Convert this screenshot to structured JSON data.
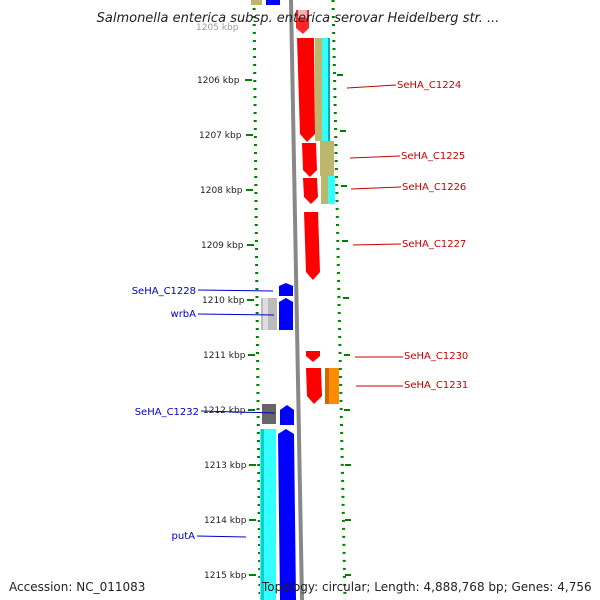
{
  "title": "Salmonella enterica subsp. enterica serovar Heidelberg str. ...",
  "ruler": {
    "ticks": [
      "1206 kbp",
      "1207 kbp",
      "1208 kbp",
      "1209 kbp",
      "1210 kbp",
      "1211 kbp",
      "1212 kbp",
      "1213 kbp",
      "1214 kbp",
      "1215 kbp"
    ],
    "clipped_top_label": "1205 kbp"
  },
  "features": {
    "forward": [
      "SeHA_C1224",
      "SeHA_C1225",
      "SeHA_C1226",
      "SeHA_C1227",
      "SeHA_C1230",
      "SeHA_C1231"
    ],
    "reverse": [
      "SeHA_C1228",
      "wrbA",
      "SeHA_C1232",
      "putA"
    ]
  },
  "footer": {
    "accession": "Accession: NC_011083",
    "topology": "Topology: circular; Length: 4,888,768 bp; Genes: 4,756"
  },
  "colors": {
    "cds": "#ff0000",
    "reverse_cds": "#0000ff",
    "feature_cyan": "#33ffff",
    "feature_khaki": "#bdb76b",
    "feature_orange": "#ff8c00",
    "feature_gray": "#bbbbbb",
    "feature_dark_gray": "#666666",
    "backbone": "#888888",
    "dotted_ruler": "#008000",
    "forward_label": "#cc0000",
    "reverse_label": "#0000cc"
  }
}
